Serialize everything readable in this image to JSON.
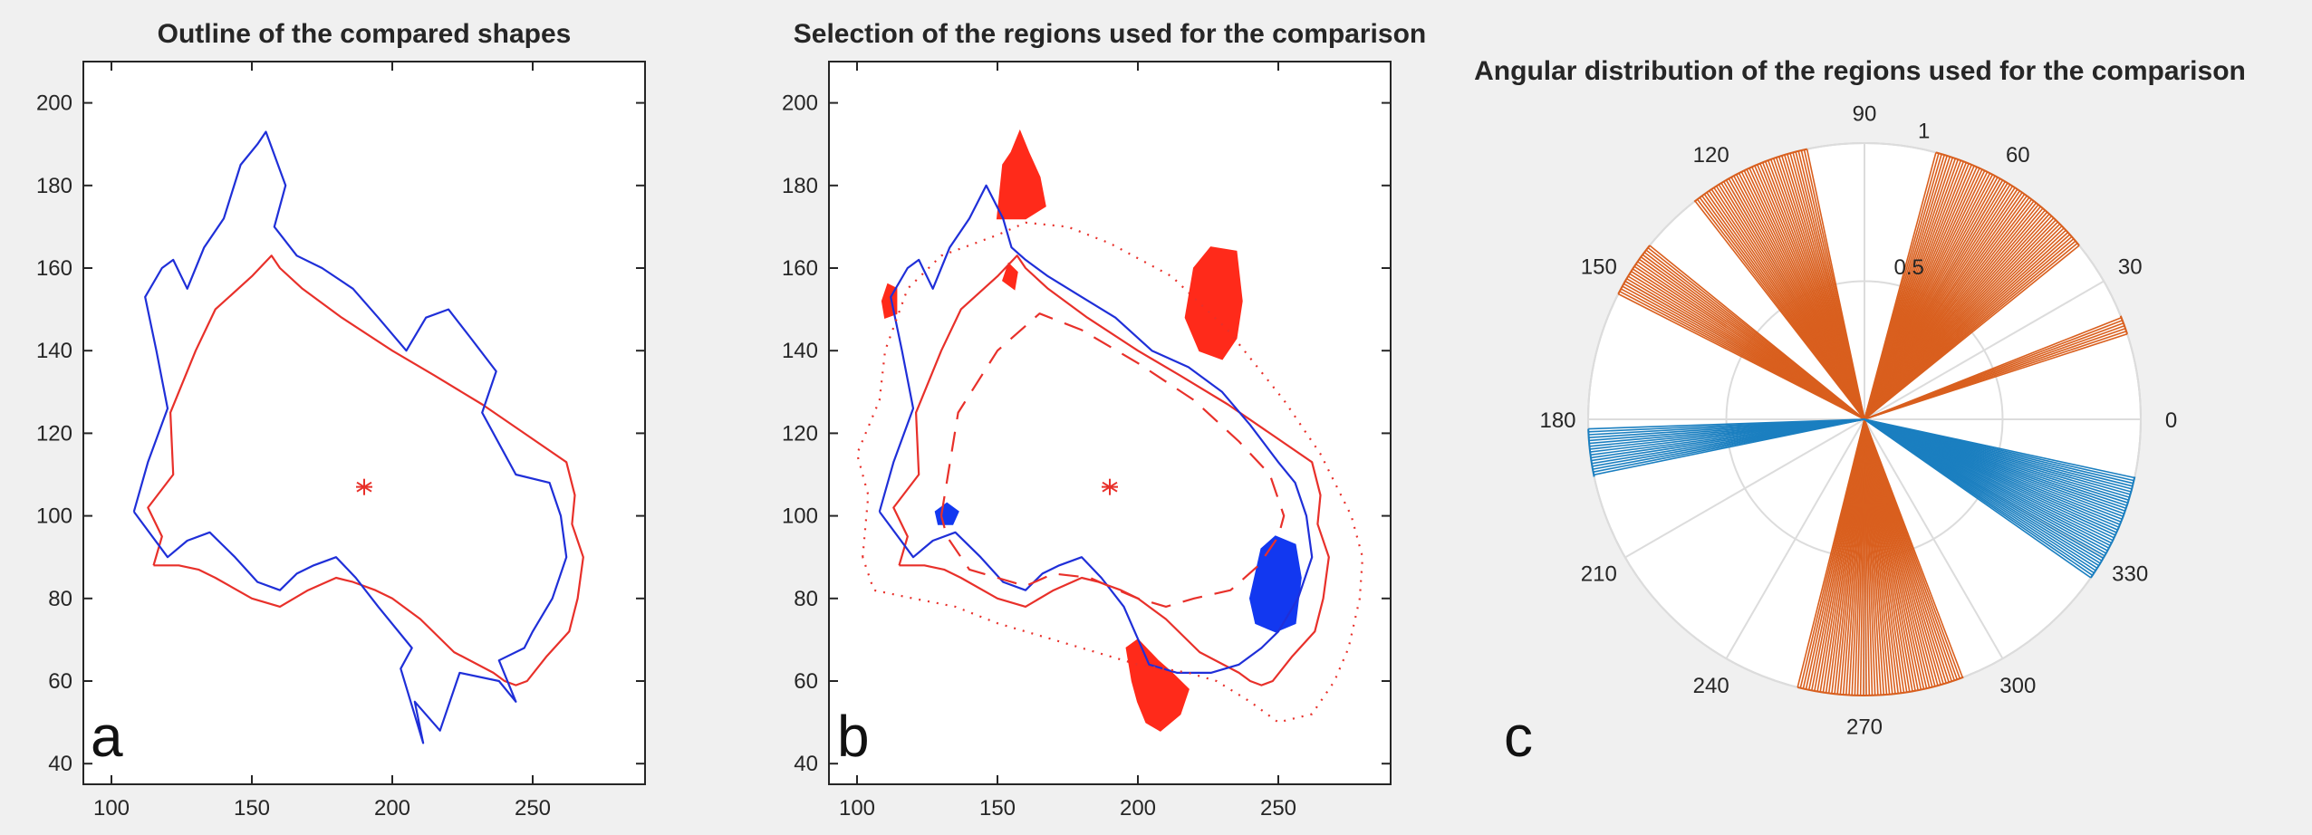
{
  "colors": {
    "figure_background": "#f0f0f0",
    "shape_red": "#e8302a",
    "shape_blue": "#1f2fd8",
    "region_red": "#ff2a1a",
    "region_blue": "#1238f0",
    "polar_orange": "#d95f1e",
    "polar_blue": "#1b7fc0",
    "grid": "#dcdcdc"
  },
  "chart_data": [
    {
      "panel": "a",
      "type": "line",
      "title": "Outline of the compared shapes",
      "xlabel": "",
      "ylabel": "",
      "xlim": [
        90,
        290
      ],
      "ylim": [
        35,
        210
      ],
      "xticks": [
        100,
        150,
        200,
        250
      ],
      "yticks": [
        40,
        60,
        80,
        100,
        120,
        140,
        160,
        180,
        200
      ],
      "grid": false,
      "centroid": {
        "x": 190,
        "y": 107,
        "marker": "*"
      },
      "series": [
        {
          "color_key": "shape_red",
          "x": [
            115,
            118,
            113,
            122,
            121,
            130,
            137,
            150,
            157,
            160,
            168,
            182,
            200,
            215,
            232,
            247,
            262,
            265,
            264,
            268,
            266,
            263,
            255,
            248,
            244,
            240,
            236,
            222,
            210,
            200,
            194,
            186,
            180,
            170,
            160,
            150,
            137,
            131,
            124,
            116,
            115
          ],
          "y": [
            88,
            95,
            102,
            110,
            125,
            140,
            150,
            158,
            163,
            160,
            155,
            148,
            140,
            134,
            127,
            120,
            113,
            105,
            98,
            90,
            80,
            72,
            66,
            60,
            59,
            60,
            62,
            67,
            75,
            80,
            82,
            84,
            85,
            82,
            78,
            80,
            85,
            87,
            88,
            88,
            88
          ]
        },
        {
          "color_key": "shape_blue",
          "x": [
            108,
            113,
            120,
            116,
            112,
            118,
            122,
            127,
            133,
            140,
            146,
            152,
            155,
            162,
            158,
            166,
            175,
            186,
            195,
            205,
            212,
            220,
            228,
            237,
            232,
            240,
            244,
            256,
            260,
            262,
            257,
            250,
            247,
            238,
            244,
            238,
            224,
            217,
            208,
            211,
            203,
            207,
            195,
            187,
            180,
            172,
            166,
            160,
            152,
            144,
            135,
            127,
            120,
            108
          ],
          "y": [
            101,
            113,
            126,
            140,
            153,
            160,
            162,
            155,
            165,
            172,
            185,
            190,
            193,
            180,
            170,
            163,
            160,
            155,
            148,
            140,
            148,
            150,
            143,
            135,
            125,
            115,
            110,
            108,
            100,
            90,
            80,
            72,
            68,
            65,
            55,
            60,
            62,
            48,
            55,
            45,
            63,
            68,
            78,
            85,
            90,
            88,
            86,
            82,
            84,
            90,
            96,
            94,
            90,
            101
          ]
        }
      ]
    },
    {
      "panel": "b",
      "type": "line",
      "title": "Selection of the regions used for the comparison",
      "xlabel": "",
      "ylabel": "",
      "xlim": [
        90,
        290
      ],
      "ylim": [
        35,
        210
      ],
      "xticks": [
        100,
        150,
        200,
        250
      ],
      "yticks": [
        40,
        60,
        80,
        100,
        120,
        140,
        160,
        180,
        200
      ],
      "grid": false,
      "centroid": {
        "x": 190,
        "y": 107,
        "marker": "*"
      },
      "series": [
        {
          "color_key": "shape_red",
          "dash": "none",
          "x": [
            115,
            118,
            113,
            122,
            121,
            130,
            137,
            150,
            157,
            160,
            168,
            182,
            200,
            215,
            232,
            247,
            262,
            265,
            264,
            268,
            266,
            263,
            255,
            248,
            244,
            240,
            236,
            222,
            210,
            200,
            194,
            186,
            180,
            170,
            160,
            150,
            137,
            131,
            124,
            116,
            115
          ],
          "y": [
            88,
            95,
            102,
            110,
            125,
            140,
            150,
            158,
            163,
            160,
            155,
            148,
            140,
            134,
            127,
            120,
            113,
            105,
            98,
            90,
            80,
            72,
            66,
            60,
            59,
            60,
            62,
            67,
            75,
            80,
            82,
            84,
            85,
            82,
            78,
            80,
            85,
            87,
            88,
            88,
            88
          ]
        },
        {
          "color_key": "shape_blue",
          "dash": "none",
          "x": [
            108,
            113,
            120,
            116,
            112,
            118,
            122,
            127,
            133,
            140,
            146,
            152,
            155,
            160,
            168,
            180,
            192,
            205,
            218,
            230,
            240,
            250,
            256,
            260,
            262,
            257,
            250,
            244,
            236,
            226,
            214,
            204,
            195,
            187,
            180,
            172,
            166,
            160,
            152,
            144,
            135,
            127,
            120,
            108
          ],
          "y": [
            101,
            113,
            126,
            140,
            153,
            160,
            162,
            155,
            165,
            172,
            180,
            172,
            165,
            162,
            158,
            153,
            148,
            140,
            136,
            130,
            122,
            113,
            108,
            100,
            90,
            80,
            72,
            68,
            64,
            62,
            62,
            64,
            78,
            85,
            90,
            88,
            86,
            82,
            84,
            90,
            96,
            94,
            90,
            101
          ]
        },
        {
          "color_key": "shape_red",
          "dash": "long",
          "x": [
            130,
            136,
            150,
            165,
            180,
            200,
            220,
            236,
            247,
            252,
            250,
            243,
            233,
            220,
            210,
            200,
            193,
            183,
            170,
            160,
            150,
            140,
            132,
            130
          ],
          "y": [
            100,
            125,
            140,
            149,
            145,
            137,
            128,
            118,
            110,
            100,
            95,
            88,
            82,
            80,
            78,
            80,
            82,
            85,
            86,
            83,
            85,
            87,
            95,
            100
          ]
        },
        {
          "color_key": "shape_red",
          "dash": "dotted",
          "x": [
            102,
            104,
            100,
            108,
            110,
            118,
            130,
            150,
            160,
            175,
            190,
            212,
            232,
            252,
            265,
            276,
            280,
            279,
            275,
            270,
            262,
            250,
            240,
            228,
            218,
            200,
            185,
            170,
            150,
            135,
            120,
            106,
            102
          ],
          "y": [
            90,
            105,
            115,
            128,
            140,
            155,
            163,
            168,
            171,
            170,
            166,
            158,
            145,
            128,
            115,
            100,
            90,
            80,
            68,
            60,
            52,
            50,
            55,
            60,
            62,
            64,
            67,
            70,
            74,
            78,
            80,
            82,
            90
          ]
        }
      ]
    },
    {
      "panel": "c",
      "type": "polar",
      "title": "Angular distribution of the regions used for the comparison",
      "rlim": [
        0,
        1
      ],
      "rticks": [
        0.5,
        1
      ],
      "theta_ticks": [
        0,
        30,
        60,
        90,
        120,
        150,
        180,
        210,
        240,
        270,
        300,
        330
      ],
      "grid": true,
      "sectors": [
        {
          "color_key": "polar_orange",
          "theta_start": 39,
          "theta_end": 75,
          "r": 1
        },
        {
          "color_key": "polar_orange",
          "theta_start": 102,
          "theta_end": 128,
          "r": 1
        },
        {
          "color_key": "polar_orange",
          "theta_start": 141,
          "theta_end": 153,
          "r": 1
        },
        {
          "color_key": "polar_orange",
          "theta_start": 18,
          "theta_end": 22,
          "r": 1
        },
        {
          "color_key": "polar_orange",
          "theta_start": 256,
          "theta_end": 291,
          "r": 1
        },
        {
          "color_key": "polar_blue",
          "theta_start": 182,
          "theta_end": 192,
          "r": 1
        },
        {
          "color_key": "polar_blue",
          "theta_start": 325,
          "theta_end": 348,
          "r": 1
        }
      ]
    }
  ],
  "panel_letters": {
    "a": "a",
    "b": "b",
    "c": "c"
  }
}
